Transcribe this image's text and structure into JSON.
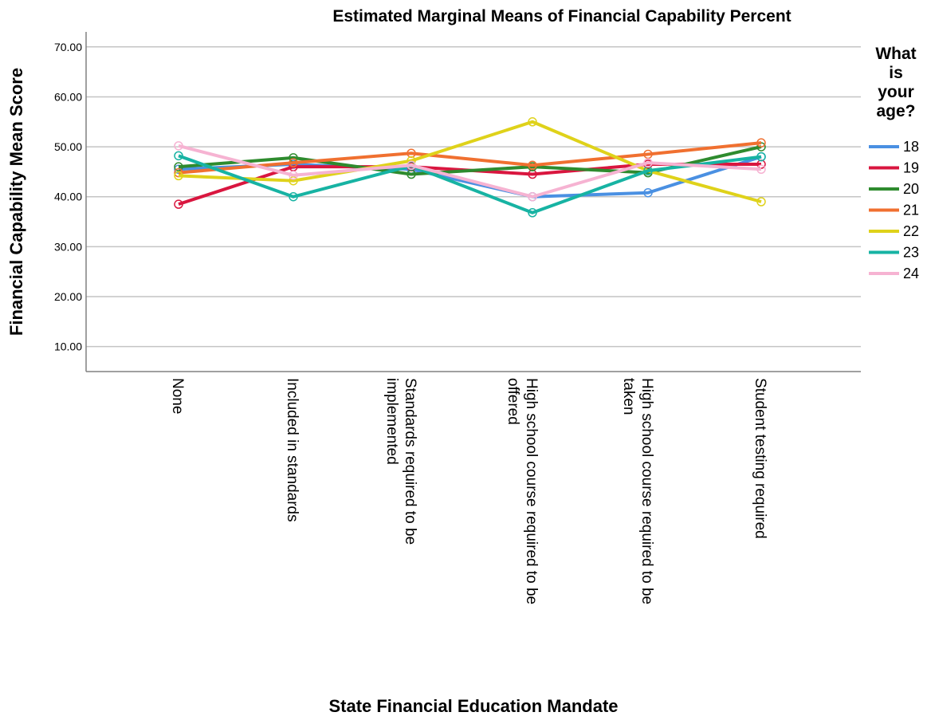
{
  "chart_data": {
    "type": "line",
    "title": "Estimated Marginal Means of Financial Capability Percent",
    "xlabel": "State Financial Education Mandate",
    "ylabel": "Financial Capability Mean Score",
    "ylim": [
      5,
      73
    ],
    "yticks": [
      "10.00",
      "20.00",
      "30.00",
      "40.00",
      "50.00",
      "60.00",
      "70.00"
    ],
    "grid": true,
    "legend_position": "right",
    "legend_title": [
      "What",
      "is",
      "your",
      "age?"
    ],
    "categories": [
      [
        "None"
      ],
      [
        "Included in standards"
      ],
      [
        "Standards required to be",
        "implemented"
      ],
      [
        "High school course required to be",
        "offered"
      ],
      [
        "High school course required to be",
        "taken"
      ],
      [
        "Student testing required"
      ]
    ],
    "series": [
      {
        "name": "18",
        "color": "#4a90e2",
        "values": [
          45.5,
          46.5,
          45.5,
          40.0,
          40.8,
          48.0
        ]
      },
      {
        "name": "19",
        "color": "#d9163f",
        "values": [
          38.5,
          46.0,
          46.0,
          44.5,
          46.5,
          46.5
        ]
      },
      {
        "name": "20",
        "color": "#2e8b2e",
        "values": [
          46.0,
          47.8,
          44.5,
          46.0,
          44.8,
          50.0
        ]
      },
      {
        "name": "21",
        "color": "#f07030",
        "values": [
          44.8,
          46.8,
          48.7,
          46.3,
          48.5,
          50.8
        ]
      },
      {
        "name": "22",
        "color": "#dfd21a",
        "values": [
          44.2,
          43.2,
          47.2,
          55.0,
          45.2,
          39.0
        ]
      },
      {
        "name": "23",
        "color": "#17b3a3",
        "values": [
          48.2,
          40.0,
          46.2,
          36.8,
          45.2,
          48.0
        ]
      },
      {
        "name": "24",
        "color": "#f6b3d2",
        "values": [
          50.2,
          44.3,
          46.3,
          40.0,
          46.8,
          45.5
        ]
      }
    ]
  }
}
